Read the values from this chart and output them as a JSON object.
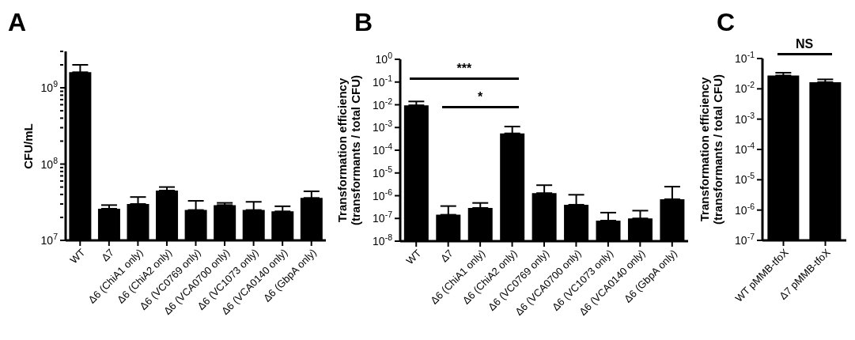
{
  "chart_data": [
    {
      "type": "bar",
      "title": "A",
      "ylabel": "CFU/mL",
      "log": "y",
      "grid": false,
      "color": "#000000",
      "categories": [
        "WT",
        "Δ7",
        "Δ6 (ChiA1 only)",
        "Δ6 (ChiA2 only)",
        "Δ6 (VC0769 only)",
        "Δ6 (VCA0700 only)",
        "Δ6 (VC1073 only)",
        "Δ6 (VCA0140 only)",
        "Δ6 (GbpA only)"
      ],
      "values": [
        1600000000,
        26000000,
        30000000,
        45000000,
        25000000,
        29000000,
        25000000,
        24000000,
        36000000
      ],
      "errors": [
        [
          1600000000,
          2000000000
        ],
        [
          26000000,
          29000000
        ],
        [
          30000000,
          37000000
        ],
        [
          45000000,
          50000000
        ],
        [
          25000000,
          33000000
        ],
        [
          29000000,
          31000000
        ],
        [
          25000000,
          32000000
        ],
        [
          24000000,
          28000000
        ],
        [
          36000000,
          44000000
        ]
      ],
      "ylim": [
        10000000,
        3000000000
      ],
      "yticks": [
        {
          "value": 10000000,
          "label": "10$^{7}$"
        },
        {
          "value": 20000000,
          "label": null
        },
        {
          "value": 30000000,
          "label": null
        },
        {
          "value": 40000000,
          "label": null
        },
        {
          "value": 50000000,
          "label": null
        },
        {
          "value": 60000000,
          "label": null
        },
        {
          "value": 70000000,
          "label": null
        },
        {
          "value": 80000000,
          "label": null
        },
        {
          "value": 90000000,
          "label": null
        },
        {
          "value": 100000000,
          "label": "10$^{8}$"
        },
        {
          "value": 200000000,
          "label": null
        },
        {
          "value": 300000000,
          "label": null
        },
        {
          "value": 400000000,
          "label": null
        },
        {
          "value": 500000000,
          "label": null
        },
        {
          "value": 600000000,
          "label": null
        },
        {
          "value": 700000000,
          "label": null
        },
        {
          "value": 800000000,
          "label": null
        },
        {
          "value": 900000000,
          "label": null
        },
        {
          "value": 1000000000,
          "label": "10$^{9}$"
        },
        {
          "value": 2000000000,
          "label": null
        },
        {
          "value": 3000000000,
          "label": null
        }
      ]
    },
    {
      "type": "bar",
      "title": "B",
      "ylabel": "Transformation efficiency\n(transformants / total CFU)",
      "log": "y",
      "grid": false,
      "color": "#000000",
      "categories": [
        "WT",
        "Δ7",
        "Δ6 (ChiA1 only)",
        "Δ6 (ChiA2 only)",
        "Δ6 (VC0769 only)",
        "Δ6 (VCA0700 only)",
        "Δ6 (VC1073 only)",
        "Δ6 (VCA0140 only)",
        "Δ6 (GbpA only)"
      ],
      "values": [
        0.0095,
        1.45e-07,
        2.9e-07,
        0.00055,
        1.3e-06,
        4e-07,
        8e-08,
        1e-07,
        7e-07
      ],
      "errors": [
        [
          0.0095,
          0.014
        ],
        [
          1.45e-07,
          3.5e-07
        ],
        [
          2.9e-07,
          4.8e-07
        ],
        [
          0.00055,
          0.0011
        ],
        [
          1.3e-06,
          2.9e-06
        ],
        [
          4e-07,
          1.1e-06
        ],
        [
          8e-08,
          1.8e-07
        ],
        [
          1e-07,
          2.2e-07
        ],
        [
          7e-07,
          2.5e-06
        ]
      ],
      "ylim": [
        1e-08,
        1
      ],
      "yticks": [
        {
          "value": 1e-08,
          "label": "10$^{-8}$"
        },
        {
          "value": 1e-07,
          "label": "10$^{-7}$"
        },
        {
          "value": 1e-06,
          "label": "10$^{-6}$"
        },
        {
          "value": 1e-05,
          "label": "10$^{-5}$"
        },
        {
          "value": 0.0001,
          "label": "10$^{-4}$"
        },
        {
          "value": 0.001,
          "label": "10$^{-3}$"
        },
        {
          "value": 0.01,
          "label": "10$^{-2}$"
        },
        {
          "value": 0.1,
          "label": "10$^{-1}$"
        },
        {
          "value": 1,
          "label": "10$^{0}$"
        }
      ],
      "annotations": [
        "***",
        "*"
      ]
    },
    {
      "type": "bar",
      "title": "C",
      "ylabel": "Transformation efficiency\n(transformants / total CFU)",
      "log": "y",
      "grid": false,
      "color": "#000000",
      "categories": [
        "WT pMMB-tfoX",
        "Δ7 pMMB-tfoX"
      ],
      "values": [
        0.0275,
        0.0166
      ],
      "errors": [
        [
          0.0275,
          0.034
        ],
        [
          0.0166,
          0.0205
        ]
      ],
      "ylim": [
        1e-07,
        0.1
      ],
      "yticks": [
        {
          "value": 1e-07,
          "label": "10$^{-7}$"
        },
        {
          "value": 1e-06,
          "label": "10$^{-6}$"
        },
        {
          "value": 1e-05,
          "label": "10$^{-5}$"
        },
        {
          "value": 0.0001,
          "label": "10$^{-4}$"
        },
        {
          "value": 0.001,
          "label": "10$^{-3}$"
        },
        {
          "value": 0.01,
          "label": "10$^{-2}$"
        },
        {
          "value": 0.1,
          "label": "10$^{-1}$"
        }
      ],
      "annotations": [
        "NS"
      ]
    }
  ]
}
